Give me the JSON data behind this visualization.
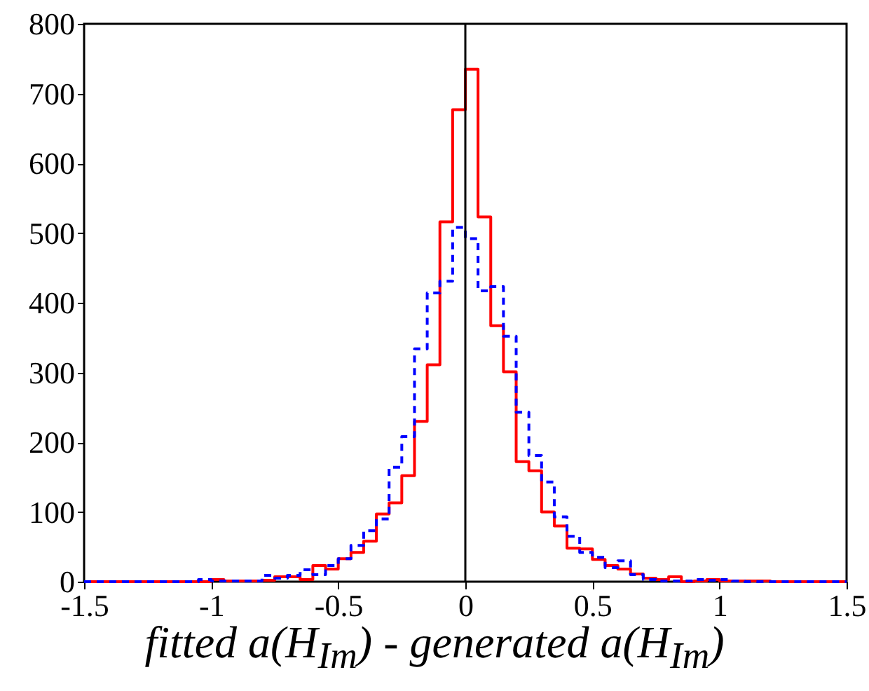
{
  "chart_data": {
    "type": "histogram",
    "xlabel": "fitted a(H$_{Im}$) - generated a(H$_{Im}$)",
    "bins": [
      -1.5,
      -1.45,
      -1.4,
      -1.35,
      -1.3,
      -1.25,
      -1.2,
      -1.15,
      -1.1,
      -1.05,
      -1.0,
      -0.95,
      -0.9,
      -0.85,
      -0.8,
      -0.75,
      -0.7,
      -0.65,
      -0.6,
      -0.55,
      -0.5,
      -0.45,
      -0.4,
      -0.35,
      -0.3,
      -0.25,
      -0.2,
      -0.15,
      -0.1,
      -0.05,
      0,
      0.05,
      0.1,
      0.15,
      0.2,
      0.25,
      0.3,
      0.35,
      0.4,
      0.45,
      0.5,
      0.55,
      0.6,
      0.65,
      0.7,
      0.75,
      0.8,
      0.85,
      0.9,
      0.95,
      1.0,
      1.05,
      1.1,
      1.15,
      1.2,
      1.25,
      1.3,
      1.35,
      1.4,
      1.45,
      1.5
    ],
    "series": [
      {
        "color": "#ff0000",
        "line_style": "solid",
        "values": [
          0,
          0,
          0,
          0,
          0,
          0,
          0,
          0,
          0,
          0,
          3,
          1,
          1,
          1,
          2,
          7,
          7,
          3,
          23,
          18,
          33,
          42,
          58,
          97,
          113,
          152,
          230,
          311,
          516,
          677,
          735,
          523,
          367,
          301,
          172,
          159,
          100,
          80,
          48,
          47,
          32,
          23,
          18,
          11,
          5,
          3,
          7,
          0,
          1,
          3,
          1,
          1,
          1,
          1,
          0,
          0,
          0,
          0,
          0,
          0
        ]
      },
      {
        "color": "#0000ff",
        "line_style": "dashed",
        "values": [
          0,
          0,
          0,
          0,
          0,
          0,
          0,
          0,
          0,
          3,
          1,
          1,
          1,
          1,
          9,
          5,
          9,
          17,
          10,
          23,
          33,
          52,
          73,
          90,
          164,
          208,
          334,
          414,
          431,
          508,
          492,
          417,
          423,
          352,
          243,
          181,
          143,
          93,
          65,
          42,
          35,
          20,
          30,
          10,
          3,
          1,
          1,
          1,
          3,
          2,
          3,
          1,
          0,
          0,
          0,
          0,
          0,
          0,
          0,
          0
        ]
      }
    ],
    "xlim": [
      -1.5,
      1.5
    ],
    "xticks": [
      -1.5,
      -1,
      -0.5,
      0,
      0.5,
      1,
      1.5
    ],
    "ylim": [
      0,
      800
    ],
    "yticks": [
      0,
      100,
      200,
      300,
      400,
      500,
      600,
      700,
      800
    ],
    "ref_lines": [
      {
        "axis": "x",
        "value": 0,
        "color": "#000000"
      }
    ],
    "grid": false
  }
}
